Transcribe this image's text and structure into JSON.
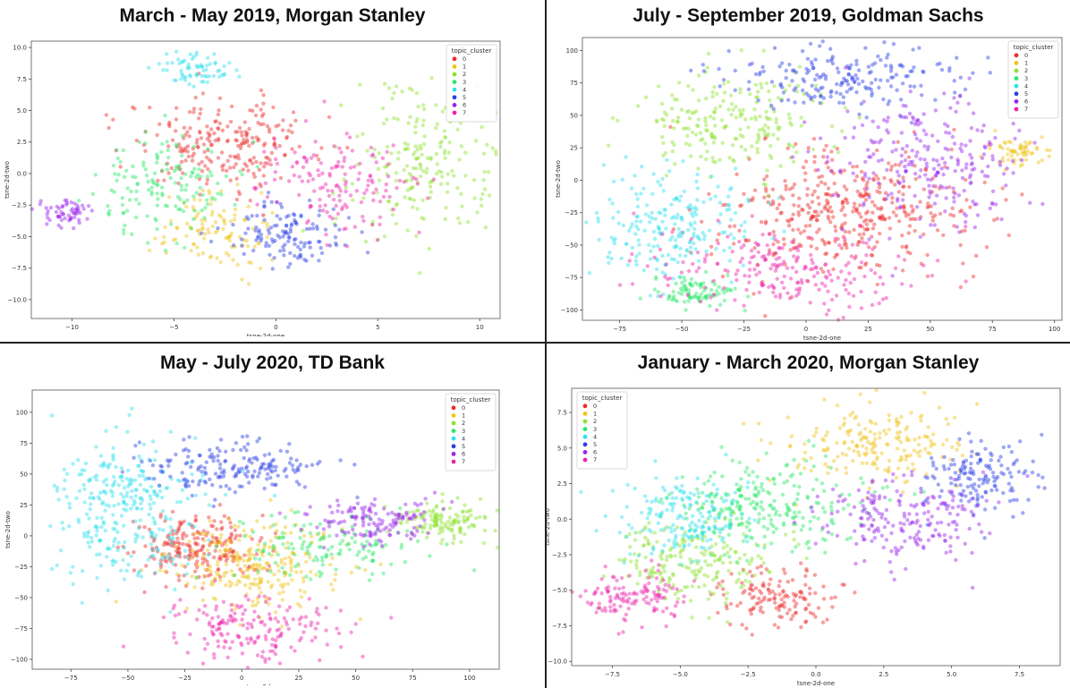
{
  "legend_title": "topic_cluster",
  "cluster_colors": [
    "#ee2a2a",
    "#f0c419",
    "#8be22c",
    "#28e868",
    "#2ee0ee",
    "#2a3ee6",
    "#9a22ee",
    "#ee22aa"
  ],
  "chart_data": [
    {
      "type": "scatter",
      "title": "March - May 2019, Morgan Stanley",
      "xlabel": "tsne-2d-one",
      "ylabel": "tsne-2d-two",
      "xlim": [
        -12,
        11
      ],
      "ylim": [
        -11.5,
        10.5
      ],
      "xticks": [
        -10,
        -5,
        0,
        5,
        10
      ],
      "yticks": [
        -10.0,
        -7.5,
        -5.0,
        -2.5,
        0.0,
        2.5,
        5.0,
        7.5,
        10.0
      ],
      "x_tick_labels": [
        "−10",
        "−5",
        "0",
        "5",
        "10"
      ],
      "y_tick_labels": [
        "−10.0",
        "−7.5",
        "−5.0",
        "−2.5",
        "0.0",
        "2.5",
        "5.0",
        "7.5",
        "10.0"
      ],
      "legend": "top-right",
      "categories": [
        "0",
        "1",
        "2",
        "3",
        "4",
        "5",
        "6",
        "7"
      ],
      "clusters": [
        {
          "name": "0",
          "center": [
            -2.5,
            2.5
          ],
          "spread": [
            2.3,
            1.8
          ],
          "count": 230
        },
        {
          "name": "1",
          "center": [
            -3.0,
            -4.5
          ],
          "spread": [
            1.4,
            1.6
          ],
          "count": 110
        },
        {
          "name": "2",
          "center": [
            7.2,
            1.0
          ],
          "spread": [
            1.8,
            3.0
          ],
          "count": 200
        },
        {
          "name": "3",
          "center": [
            -5.5,
            -1.0
          ],
          "spread": [
            1.8,
            2.0
          ],
          "count": 150
        },
        {
          "name": "4",
          "center": [
            -4.0,
            8.3
          ],
          "spread": [
            0.9,
            0.6
          ],
          "count": 70
        },
        {
          "name": "5",
          "center": [
            0.5,
            -4.8
          ],
          "spread": [
            1.4,
            1.2
          ],
          "count": 130
        },
        {
          "name": "6",
          "center": [
            -10.3,
            -3.0
          ],
          "spread": [
            0.7,
            0.6
          ],
          "count": 60
        },
        {
          "name": "7",
          "center": [
            3.2,
            -1.0
          ],
          "spread": [
            1.8,
            1.8
          ],
          "count": 150
        }
      ]
    },
    {
      "type": "scatter",
      "title": "July - September 2019, Goldman Sachs",
      "xlabel": "tsne-2d-one",
      "ylabel": "tsne-2d-two",
      "xlim": [
        -90,
        103
      ],
      "ylim": [
        -108,
        110
      ],
      "xticks": [
        -75,
        -50,
        -25,
        0,
        25,
        50,
        75,
        100
      ],
      "yticks": [
        -100,
        -75,
        -50,
        -25,
        0,
        25,
        50,
        75,
        100
      ],
      "x_tick_labels": [
        "−75",
        "−50",
        "−25",
        "0",
        "25",
        "50",
        "75",
        "100"
      ],
      "y_tick_labels": [
        "−100",
        "−75",
        "−50",
        "−25",
        "0",
        "25",
        "50",
        "75",
        "100"
      ],
      "legend": "top-right",
      "categories": [
        "0",
        "1",
        "2",
        "3",
        "4",
        "5",
        "6",
        "7"
      ],
      "clusters": [
        {
          "name": "0",
          "center": [
            15,
            -25
          ],
          "spread": [
            25,
            25
          ],
          "count": 420
        },
        {
          "name": "1",
          "center": [
            85,
            22
          ],
          "spread": [
            6,
            5
          ],
          "count": 60
        },
        {
          "name": "2",
          "center": [
            -30,
            45
          ],
          "spread": [
            20,
            18
          ],
          "count": 220
        },
        {
          "name": "3",
          "center": [
            -45,
            -85
          ],
          "spread": [
            8,
            6
          ],
          "count": 90
        },
        {
          "name": "4",
          "center": [
            -55,
            -35
          ],
          "spread": [
            16,
            20
          ],
          "count": 220
        },
        {
          "name": "5",
          "center": [
            15,
            80
          ],
          "spread": [
            25,
            12
          ],
          "count": 200
        },
        {
          "name": "6",
          "center": [
            50,
            15
          ],
          "spread": [
            20,
            25
          ],
          "count": 250
        },
        {
          "name": "7",
          "center": [
            -10,
            -70
          ],
          "spread": [
            28,
            15
          ],
          "count": 220
        }
      ]
    },
    {
      "type": "scatter",
      "title": "May - July 2020, TD Bank",
      "xlabel": "tsne-2d-one",
      "ylabel": "tsne-2d-two",
      "xlim": [
        -92,
        113
      ],
      "ylim": [
        -108,
        118
      ],
      "xticks": [
        -75,
        -50,
        -25,
        0,
        25,
        50,
        75,
        100
      ],
      "yticks": [
        -100,
        -75,
        -50,
        -25,
        0,
        25,
        50,
        75,
        100
      ],
      "x_tick_labels": [
        "−75",
        "−50",
        "−25",
        "0",
        "25",
        "50",
        "75",
        "100"
      ],
      "y_tick_labels": [
        "−100",
        "−75",
        "−50",
        "−25",
        "0",
        "25",
        "50",
        "75",
        "100"
      ],
      "legend": "top-right",
      "categories": [
        "0",
        "1",
        "2",
        "3",
        "4",
        "5",
        "6",
        "7"
      ],
      "clusters": [
        {
          "name": "0",
          "center": [
            -20,
            -10
          ],
          "spread": [
            14,
            14
          ],
          "count": 220
        },
        {
          "name": "1",
          "center": [
            5,
            -25
          ],
          "spread": [
            20,
            18
          ],
          "count": 260
        },
        {
          "name": "2",
          "center": [
            90,
            10
          ],
          "spread": [
            10,
            8
          ],
          "count": 130
        },
        {
          "name": "3",
          "center": [
            40,
            -10
          ],
          "spread": [
            20,
            14
          ],
          "count": 140
        },
        {
          "name": "4",
          "center": [
            -50,
            25
          ],
          "spread": [
            16,
            28
          ],
          "count": 320
        },
        {
          "name": "5",
          "center": [
            -5,
            55
          ],
          "spread": [
            22,
            12
          ],
          "count": 180
        },
        {
          "name": "6",
          "center": [
            60,
            12
          ],
          "spread": [
            14,
            10
          ],
          "count": 140
        },
        {
          "name": "7",
          "center": [
            5,
            -75
          ],
          "spread": [
            20,
            13
          ],
          "count": 180
        }
      ]
    },
    {
      "type": "scatter",
      "title": "January - March 2020, Morgan Stanley",
      "xlabel": "tsne-2d-one",
      "ylabel": "tsne-2d-two",
      "xlim": [
        -9,
        9
      ],
      "ylim": [
        -10.3,
        9.2
      ],
      "xticks": [
        -7.5,
        -5.0,
        -2.5,
        0.0,
        2.5,
        5.0,
        7.5
      ],
      "yticks": [
        -10.0,
        -7.5,
        -5.0,
        -2.5,
        0.0,
        2.5,
        5.0,
        7.5
      ],
      "x_tick_labels": [
        "−7.5",
        "−5.0",
        "−2.5",
        "0.0",
        "2.5",
        "5.0",
        "7.5"
      ],
      "y_tick_labels": [
        "−10.0",
        "−7.5",
        "−5.0",
        "−2.5",
        "0.0",
        "2.5",
        "5.0",
        "7.5"
      ],
      "legend": "top-left",
      "categories": [
        "0",
        "1",
        "2",
        "3",
        "4",
        "5",
        "6",
        "7"
      ],
      "clusters": [
        {
          "name": "0",
          "center": [
            -1.5,
            -5.5
          ],
          "spread": [
            1.2,
            1.0
          ],
          "count": 140
        },
        {
          "name": "1",
          "center": [
            2.5,
            5.5
          ],
          "spread": [
            1.6,
            1.4
          ],
          "count": 200
        },
        {
          "name": "2",
          "center": [
            -4.5,
            -3.0
          ],
          "spread": [
            1.5,
            1.5
          ],
          "count": 200
        },
        {
          "name": "3",
          "center": [
            -2.0,
            1.0
          ],
          "spread": [
            1.8,
            1.6
          ],
          "count": 250
        },
        {
          "name": "4",
          "center": [
            -4.8,
            0.0
          ],
          "spread": [
            1.2,
            1.5
          ],
          "count": 180
        },
        {
          "name": "5",
          "center": [
            6.0,
            3.0
          ],
          "spread": [
            1.0,
            1.2
          ],
          "count": 150
        },
        {
          "name": "6",
          "center": [
            3.5,
            0.0
          ],
          "spread": [
            1.6,
            1.5
          ],
          "count": 200
        },
        {
          "name": "7",
          "center": [
            -6.8,
            -5.5
          ],
          "spread": [
            1.0,
            0.9
          ],
          "count": 130
        }
      ]
    }
  ]
}
